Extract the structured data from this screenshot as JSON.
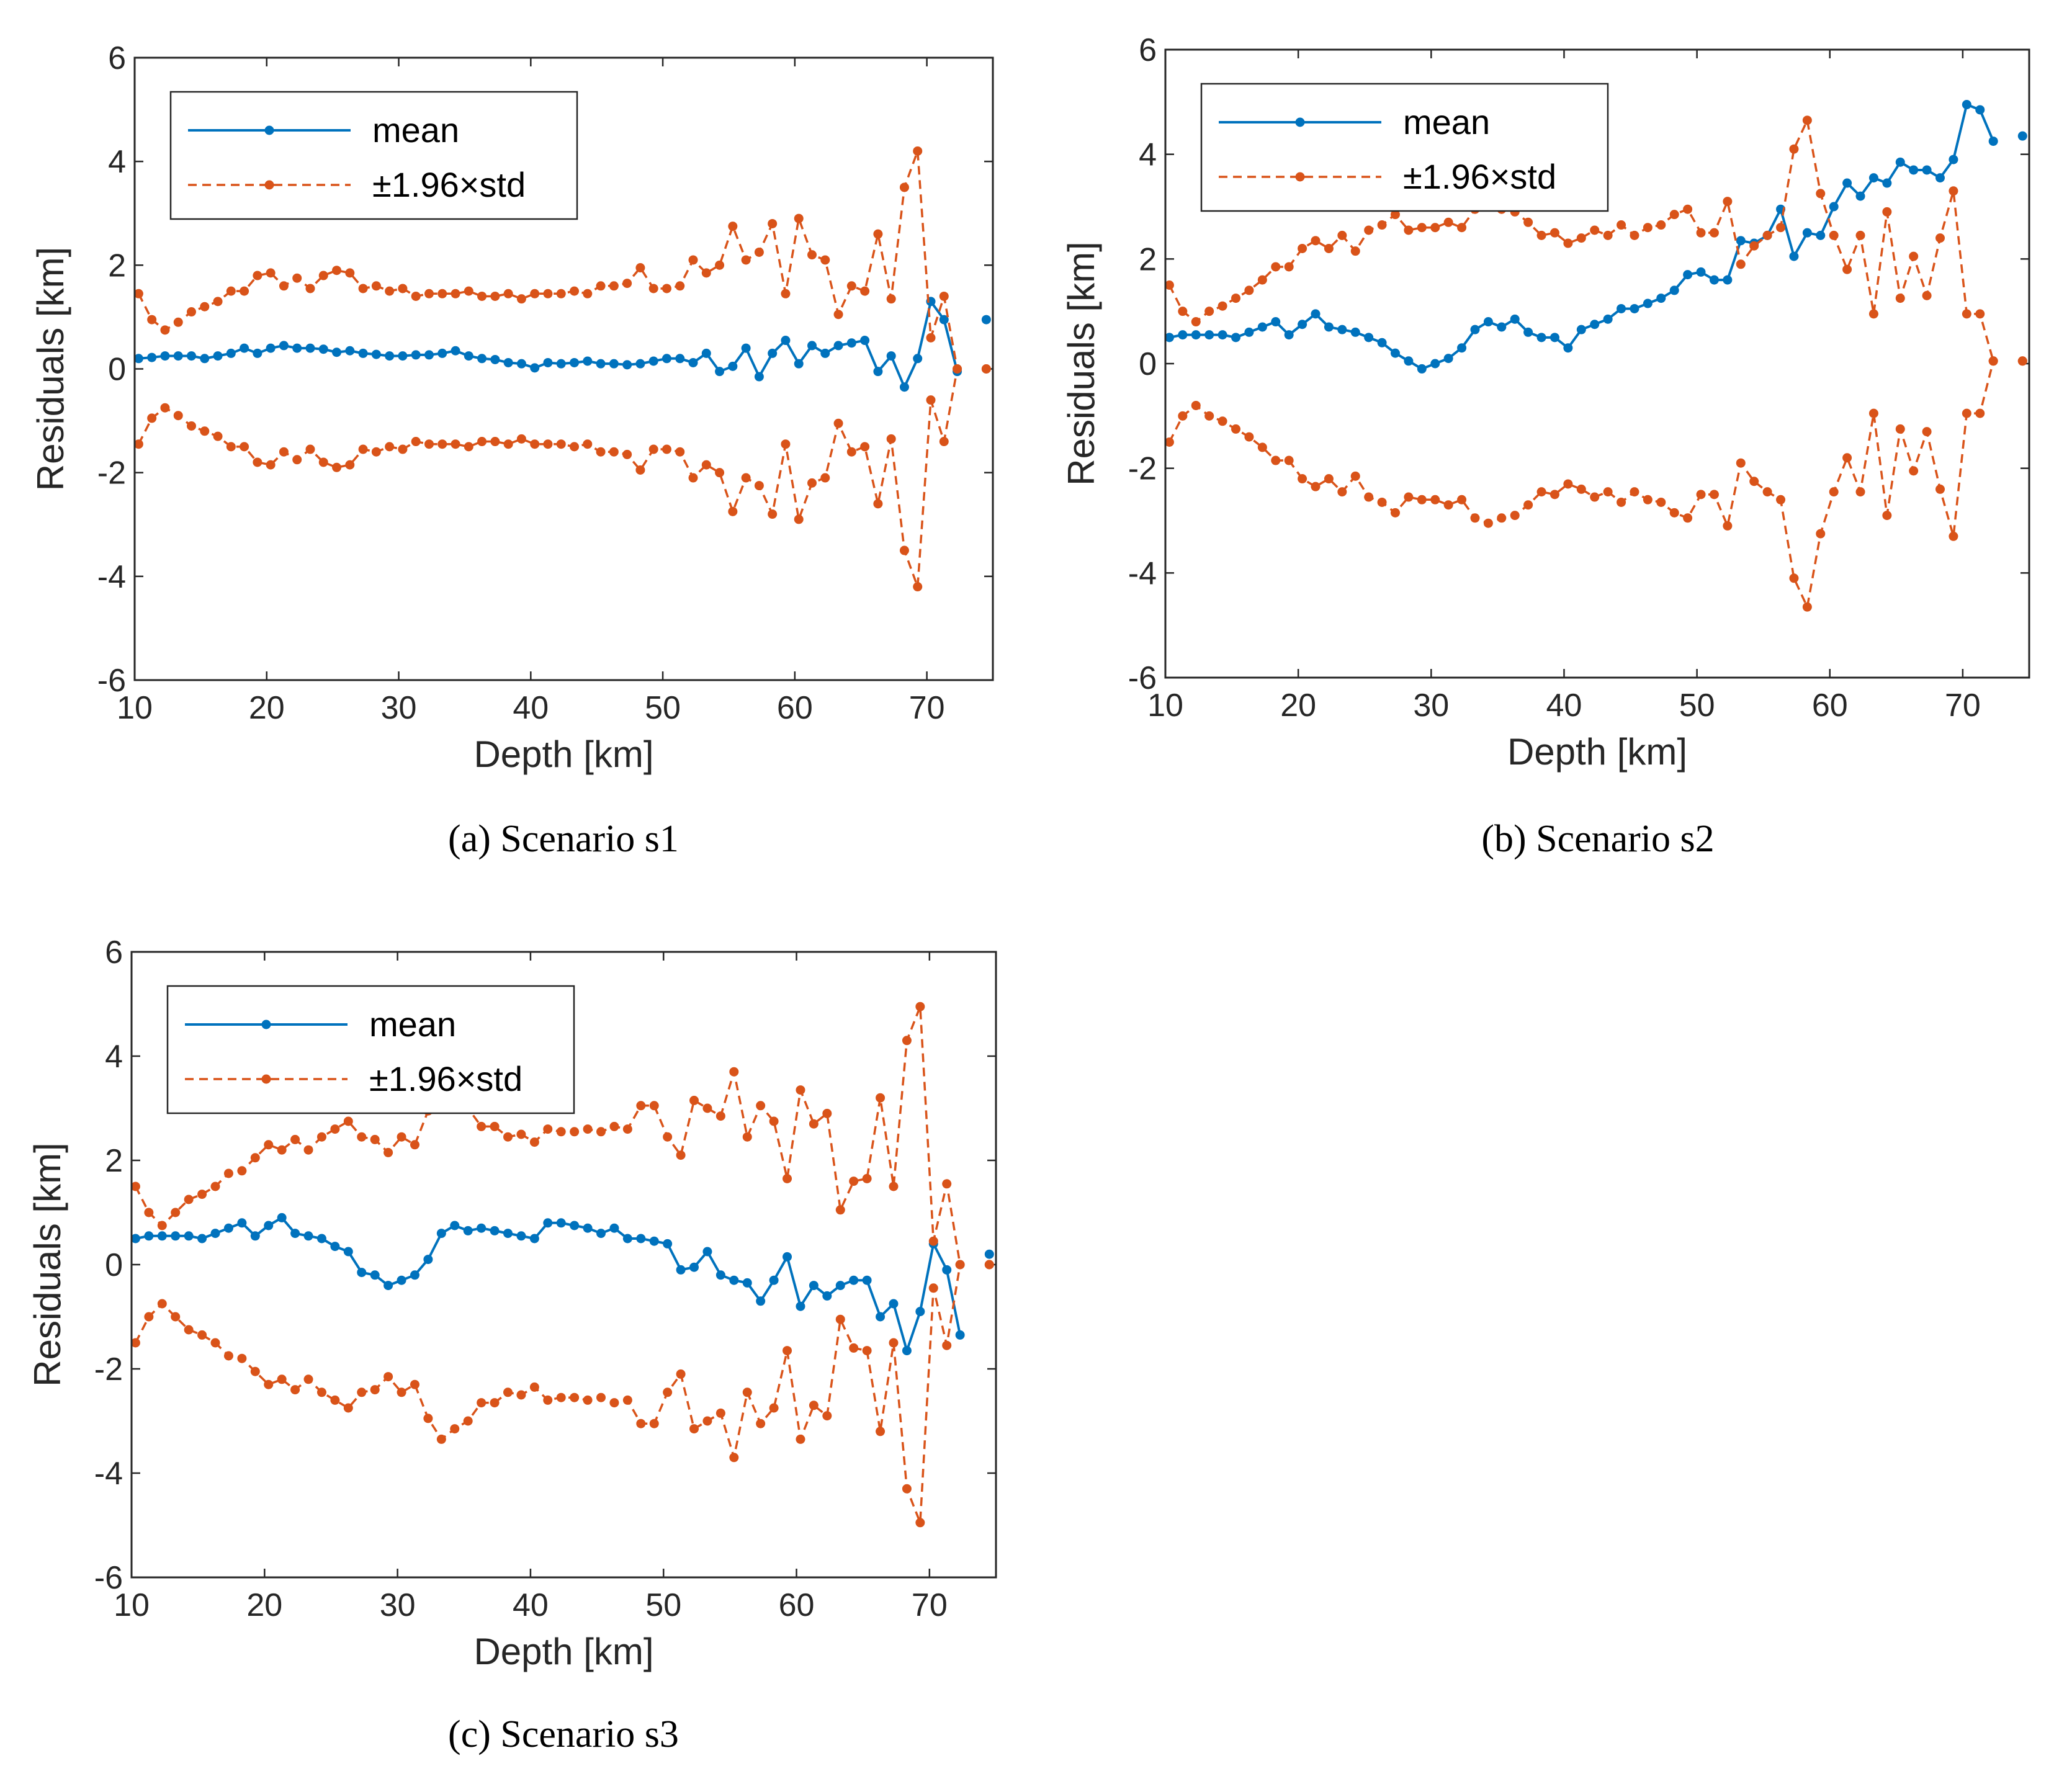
{
  "figure": {
    "colors": {
      "mean": "#0072BD",
      "std": "#D95319",
      "axis": "#262626"
    }
  },
  "chart_data": [
    {
      "type": "line",
      "caption_letter": "a",
      "caption_text": "Scenario s1",
      "xlabel": "Depth [km]",
      "ylabel": "Residuals [km]",
      "xlim": [
        10,
        75
      ],
      "ylim": [
        -6,
        6
      ],
      "xticks": [
        "10",
        "20",
        "30",
        "40",
        "50",
        "60",
        "70"
      ],
      "yticks": [
        "-6",
        "-4",
        "-2",
        "0",
        "2",
        "4",
        "6"
      ],
      "legend": {
        "mean": "mean",
        "std": "±1.96×std",
        "location": "top-left"
      },
      "x": [
        10.3,
        11.3,
        12.3,
        13.3,
        14.3,
        15.3,
        16.3,
        17.3,
        18.3,
        19.3,
        20.3,
        21.3,
        22.3,
        23.3,
        24.3,
        25.3,
        26.3,
        27.3,
        28.3,
        29.3,
        30.3,
        31.3,
        32.3,
        33.3,
        34.3,
        35.3,
        36.3,
        37.3,
        38.3,
        39.3,
        40.3,
        41.3,
        42.3,
        43.3,
        44.3,
        45.3,
        46.3,
        47.3,
        48.3,
        49.3,
        50.3,
        51.3,
        52.3,
        53.3,
        54.3,
        55.3,
        56.3,
        57.3,
        58.3,
        59.3,
        60.3,
        61.3,
        62.3,
        63.3,
        64.3,
        65.3,
        66.3,
        67.3,
        68.3,
        69.3,
        70.3,
        71.3,
        72.3,
        74.5
      ],
      "series": [
        {
          "name": "mean",
          "values": [
            0.2,
            0.22,
            0.25,
            0.25,
            0.25,
            0.2,
            0.25,
            0.3,
            0.4,
            0.3,
            0.4,
            0.45,
            0.4,
            0.4,
            0.38,
            0.32,
            0.35,
            0.3,
            0.28,
            0.25,
            0.25,
            0.27,
            0.27,
            0.3,
            0.35,
            0.25,
            0.2,
            0.18,
            0.12,
            0.1,
            0.02,
            0.12,
            0.1,
            0.12,
            0.15,
            0.1,
            0.1,
            0.08,
            0.1,
            0.15,
            0.2,
            0.2,
            0.12,
            0.3,
            -0.05,
            0.05,
            0.4,
            -0.15,
            0.3,
            0.55,
            0.1,
            0.45,
            0.3,
            0.45,
            0.5,
            0.55,
            -0.05,
            0.25,
            -0.35,
            0.2,
            1.3,
            0.95,
            -0.05,
            0.95
          ]
        },
        {
          "name": "±1.96×std upper",
          "values": [
            1.45,
            0.95,
            0.75,
            0.9,
            1.1,
            1.2,
            1.3,
            1.5,
            1.5,
            1.8,
            1.85,
            1.6,
            1.75,
            1.55,
            1.8,
            1.9,
            1.85,
            1.55,
            1.6,
            1.5,
            1.55,
            1.4,
            1.45,
            1.45,
            1.45,
            1.5,
            1.4,
            1.4,
            1.45,
            1.35,
            1.45,
            1.45,
            1.45,
            1.5,
            1.45,
            1.6,
            1.6,
            1.65,
            1.95,
            1.55,
            1.55,
            1.6,
            2.1,
            1.85,
            2.0,
            2.75,
            2.1,
            2.25,
            2.8,
            1.45,
            2.9,
            2.2,
            2.1,
            1.05,
            1.6,
            1.5,
            2.6,
            1.35,
            3.5,
            4.2,
            0.6,
            1.4,
            0.0,
            0.0
          ]
        },
        {
          "name": "±1.96×std lower",
          "values": [
            -1.45,
            -0.95,
            -0.75,
            -0.9,
            -1.1,
            -1.2,
            -1.3,
            -1.5,
            -1.5,
            -1.8,
            -1.85,
            -1.6,
            -1.75,
            -1.55,
            -1.8,
            -1.9,
            -1.85,
            -1.55,
            -1.6,
            -1.5,
            -1.55,
            -1.4,
            -1.45,
            -1.45,
            -1.45,
            -1.5,
            -1.4,
            -1.4,
            -1.45,
            -1.35,
            -1.45,
            -1.45,
            -1.45,
            -1.5,
            -1.45,
            -1.6,
            -1.6,
            -1.65,
            -1.95,
            -1.55,
            -1.55,
            -1.6,
            -2.1,
            -1.85,
            -2.0,
            -2.75,
            -2.1,
            -2.25,
            -2.8,
            -1.45,
            -2.9,
            -2.2,
            -2.1,
            -1.05,
            -1.6,
            -1.5,
            -2.6,
            -1.35,
            -3.5,
            -4.2,
            -0.6,
            -1.4,
            0.0,
            0.0
          ]
        }
      ]
    },
    {
      "type": "line",
      "caption_letter": "b",
      "caption_text": "Scenario s2",
      "xlabel": "Depth [km]",
      "ylabel": "Residuals [km]",
      "xlim": [
        10,
        75
      ],
      "ylim": [
        -6,
        6
      ],
      "xticks": [
        "10",
        "20",
        "30",
        "40",
        "50",
        "60",
        "70"
      ],
      "yticks": [
        "-6",
        "-4",
        "-2",
        "0",
        "2",
        "4",
        "6"
      ],
      "legend": {
        "mean": "mean",
        "std": "±1.96×std",
        "location": "top-left"
      },
      "x": [
        10.3,
        11.3,
        12.3,
        13.3,
        14.3,
        15.3,
        16.3,
        17.3,
        18.3,
        19.3,
        20.3,
        21.3,
        22.3,
        23.3,
        24.3,
        25.3,
        26.3,
        27.3,
        28.3,
        29.3,
        30.3,
        31.3,
        32.3,
        33.3,
        34.3,
        35.3,
        36.3,
        37.3,
        38.3,
        39.3,
        40.3,
        41.3,
        42.3,
        43.3,
        44.3,
        45.3,
        46.3,
        47.3,
        48.3,
        49.3,
        50.3,
        51.3,
        52.3,
        53.3,
        54.3,
        55.3,
        56.3,
        57.3,
        58.3,
        59.3,
        60.3,
        61.3,
        62.3,
        63.3,
        64.3,
        65.3,
        66.3,
        67.3,
        68.3,
        69.3,
        70.3,
        71.3,
        72.3,
        74.5
      ],
      "series": [
        {
          "name": "mean",
          "values": [
            0.5,
            0.55,
            0.55,
            0.55,
            0.55,
            0.5,
            0.6,
            0.7,
            0.8,
            0.55,
            0.75,
            0.95,
            0.7,
            0.65,
            0.6,
            0.5,
            0.4,
            0.2,
            0.05,
            -0.1,
            0.0,
            0.1,
            0.3,
            0.65,
            0.8,
            0.7,
            0.85,
            0.6,
            0.5,
            0.5,
            0.3,
            0.65,
            0.75,
            0.85,
            1.05,
            1.05,
            1.15,
            1.25,
            1.4,
            1.7,
            1.75,
            1.6,
            1.6,
            2.35,
            2.3,
            2.45,
            2.95,
            2.05,
            2.5,
            2.45,
            3.0,
            3.45,
            3.2,
            3.55,
            3.45,
            3.85,
            3.7,
            3.7,
            3.55,
            3.9,
            4.95,
            4.85,
            4.25,
            4.35
          ]
        },
        {
          "name": "±1.96×std upper",
          "values": [
            1.5,
            1.0,
            0.8,
            1.0,
            1.1,
            1.25,
            1.4,
            1.6,
            1.85,
            1.85,
            2.2,
            2.35,
            2.2,
            2.45,
            2.15,
            2.55,
            2.65,
            2.85,
            2.55,
            2.6,
            2.6,
            2.7,
            2.6,
            2.95,
            3.05,
            2.95,
            2.9,
            2.7,
            2.45,
            2.5,
            2.3,
            2.4,
            2.55,
            2.45,
            2.65,
            2.45,
            2.6,
            2.65,
            2.85,
            2.95,
            2.5,
            2.5,
            3.1,
            1.9,
            2.25,
            2.45,
            2.6,
            4.1,
            4.65,
            3.25,
            2.45,
            1.8,
            2.45,
            0.95,
            2.9,
            1.25,
            2.05,
            1.3,
            2.4,
            3.3,
            0.95,
            0.95,
            0.05,
            0.05
          ]
        },
        {
          "name": "±1.96×std lower",
          "values": [
            -1.5,
            -1.0,
            -0.8,
            -1.0,
            -1.1,
            -1.25,
            -1.4,
            -1.6,
            -1.85,
            -1.85,
            -2.2,
            -2.35,
            -2.2,
            -2.45,
            -2.15,
            -2.55,
            -2.65,
            -2.85,
            -2.55,
            -2.6,
            -2.6,
            -2.7,
            -2.6,
            -2.95,
            -3.05,
            -2.95,
            -2.9,
            -2.7,
            -2.45,
            -2.5,
            -2.3,
            -2.4,
            -2.55,
            -2.45,
            -2.65,
            -2.45,
            -2.6,
            -2.65,
            -2.85,
            -2.95,
            -2.5,
            -2.5,
            -3.1,
            -1.9,
            -2.25,
            -2.45,
            -2.6,
            -4.1,
            -4.65,
            -3.25,
            -2.45,
            -1.8,
            -2.45,
            -0.95,
            -2.9,
            -1.25,
            -2.05,
            -1.3,
            -2.4,
            -3.3,
            -0.95,
            -0.95,
            0.05,
            0.05
          ]
        }
      ]
    },
    {
      "type": "line",
      "caption_letter": "c",
      "caption_text": "Scenario s3",
      "xlabel": "Depth [km]",
      "ylabel": "Residuals [km]",
      "xlim": [
        10,
        75
      ],
      "ylim": [
        -6,
        6
      ],
      "xticks": [
        "10",
        "20",
        "30",
        "40",
        "50",
        "60",
        "70"
      ],
      "yticks": [
        "-6",
        "-4",
        "-2",
        "0",
        "2",
        "4",
        "6"
      ],
      "legend": {
        "mean": "mean",
        "std": "±1.96×std",
        "location": "top-left"
      },
      "x": [
        10.3,
        11.3,
        12.3,
        13.3,
        14.3,
        15.3,
        16.3,
        17.3,
        18.3,
        19.3,
        20.3,
        21.3,
        22.3,
        23.3,
        24.3,
        25.3,
        26.3,
        27.3,
        28.3,
        29.3,
        30.3,
        31.3,
        32.3,
        33.3,
        34.3,
        35.3,
        36.3,
        37.3,
        38.3,
        39.3,
        40.3,
        41.3,
        42.3,
        43.3,
        44.3,
        45.3,
        46.3,
        47.3,
        48.3,
        49.3,
        50.3,
        51.3,
        52.3,
        53.3,
        54.3,
        55.3,
        56.3,
        57.3,
        58.3,
        59.3,
        60.3,
        61.3,
        62.3,
        63.3,
        64.3,
        65.3,
        66.3,
        67.3,
        68.3,
        69.3,
        70.3,
        71.3,
        72.3,
        74.5
      ],
      "series": [
        {
          "name": "mean",
          "values": [
            0.5,
            0.55,
            0.55,
            0.55,
            0.55,
            0.5,
            0.6,
            0.7,
            0.8,
            0.55,
            0.75,
            0.9,
            0.6,
            0.55,
            0.5,
            0.35,
            0.25,
            -0.15,
            -0.2,
            -0.4,
            -0.3,
            -0.2,
            0.1,
            0.6,
            0.75,
            0.65,
            0.7,
            0.65,
            0.6,
            0.55,
            0.5,
            0.8,
            0.8,
            0.75,
            0.7,
            0.6,
            0.7,
            0.5,
            0.5,
            0.45,
            0.4,
            -0.1,
            -0.05,
            0.25,
            -0.2,
            -0.3,
            -0.35,
            -0.7,
            -0.3,
            0.15,
            -0.8,
            -0.4,
            -0.6,
            -0.4,
            -0.3,
            -0.3,
            -1.0,
            -0.75,
            -1.65,
            -0.9,
            0.4,
            -0.1,
            -1.35,
            0.2
          ]
        },
        {
          "name": "±1.96×std upper",
          "values": [
            1.5,
            1.0,
            0.75,
            1.0,
            1.25,
            1.35,
            1.5,
            1.75,
            1.8,
            2.05,
            2.3,
            2.2,
            2.4,
            2.2,
            2.45,
            2.6,
            2.75,
            2.45,
            2.4,
            2.15,
            2.45,
            2.3,
            2.95,
            3.05,
            3.0,
            3.0,
            2.65,
            2.65,
            2.45,
            2.5,
            2.35,
            2.6,
            2.55,
            2.55,
            2.6,
            2.55,
            2.65,
            2.6,
            3.05,
            3.05,
            2.45,
            2.1,
            3.15,
            3.0,
            2.85,
            3.7,
            2.45,
            3.05,
            2.75,
            1.65,
            3.35,
            2.7,
            2.9,
            1.05,
            1.6,
            1.65,
            3.2,
            1.5,
            4.3,
            4.95,
            0.45,
            1.55,
            0.0,
            0.0
          ]
        },
        {
          "name": "±1.96×std lower",
          "values": [
            -1.5,
            -1.0,
            -0.75,
            -1.0,
            -1.25,
            -1.35,
            -1.5,
            -1.75,
            -1.8,
            -2.05,
            -2.3,
            -2.2,
            -2.4,
            -2.2,
            -2.45,
            -2.6,
            -2.75,
            -2.45,
            -2.4,
            -2.15,
            -2.45,
            -2.3,
            -2.95,
            -3.35,
            -3.15,
            -3.0,
            -2.65,
            -2.65,
            -2.45,
            -2.5,
            -2.35,
            -2.6,
            -2.55,
            -2.55,
            -2.6,
            -2.55,
            -2.65,
            -2.6,
            -3.05,
            -3.05,
            -2.45,
            -2.1,
            -3.15,
            -3.0,
            -2.85,
            -3.7,
            -2.45,
            -3.05,
            -2.75,
            -1.65,
            -3.35,
            -2.7,
            -2.9,
            -1.05,
            -1.6,
            -1.65,
            -3.2,
            -1.5,
            -4.3,
            -4.95,
            -0.45,
            -1.55,
            0.0,
            0.0
          ]
        }
      ]
    }
  ]
}
